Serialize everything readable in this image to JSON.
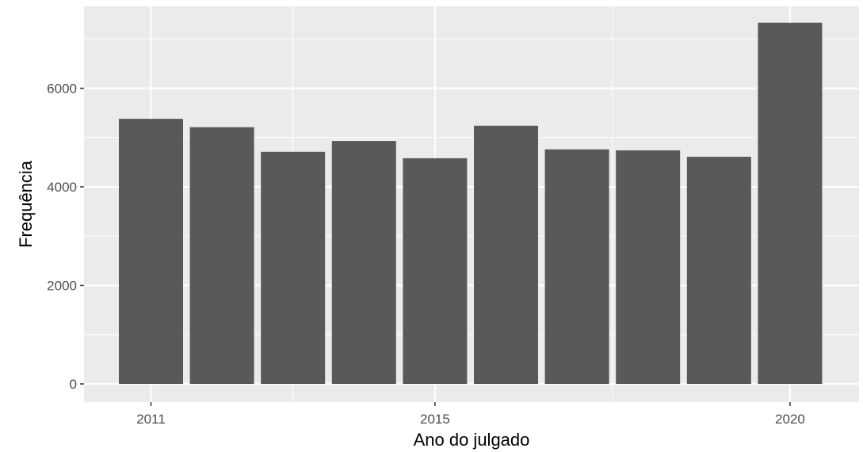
{
  "chart_data": {
    "type": "bar",
    "x": [
      2011,
      2012,
      2013,
      2014,
      2015,
      2016,
      2017,
      2018,
      2019,
      2020
    ],
    "values": [
      5380,
      5210,
      4710,
      4930,
      4580,
      5240,
      4760,
      4740,
      4610,
      7330
    ],
    "xlabel": "Ano do julgado",
    "ylabel": "Frequência",
    "x_ticks": [
      "2011",
      "2015",
      "2020"
    ],
    "y_ticks": [
      "0",
      "2000",
      "4000",
      "6000"
    ],
    "y_tick_values": [
      0,
      2000,
      4000,
      6000
    ],
    "ylim": [
      0,
      7700
    ],
    "grid": true,
    "colors": {
      "bar": "#595959",
      "panel": "#ebebeb",
      "grid": "#ffffff"
    }
  }
}
